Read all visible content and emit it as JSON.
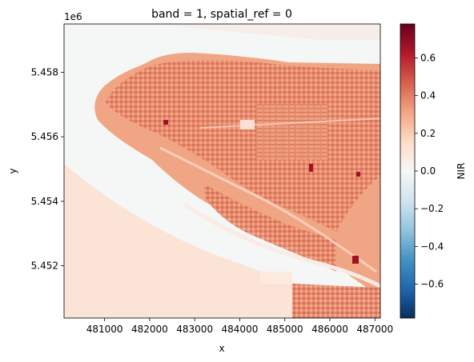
{
  "chart_data": {
    "type": "heatmap",
    "title": "band = 1, spatial_ref = 0",
    "xlabel": "x",
    "ylabel": "y",
    "y_offset_label": "1e6",
    "xlim": [
      480100,
      487120
    ],
    "ylim": [
      5.45038,
      5.4595
    ],
    "x_ticks": [
      481000,
      482000,
      483000,
      484000,
      485000,
      486000,
      487000
    ],
    "x_tick_labels": [
      "481000",
      "482000",
      "483000",
      "484000",
      "485000",
      "486000",
      "487000"
    ],
    "y_ticks": [
      5.452,
      5.454,
      5.456,
      5.458
    ],
    "y_tick_labels": [
      "5.452",
      "5.454",
      "5.456",
      "5.458"
    ],
    "colorbar": {
      "label": "NIR",
      "colormap": "RdBu_r",
      "vmin": -0.78,
      "vmax": 0.78,
      "ticks": [
        -0.6,
        -0.4,
        -0.2,
        0.0,
        0.2,
        0.4,
        0.6
      ],
      "tick_labels": [
        "−0.6",
        "−0.4",
        "−0.2",
        "0.0",
        "0.2",
        "0.4",
        "0.6"
      ]
    },
    "grid": false,
    "colors": {
      "background_value": "#f5f6f6",
      "sand_value": "#fbe4d6",
      "land_value": "#f0a684",
      "urban_value": "#d6604d",
      "hot_spot_value": "#a11227"
    }
  }
}
